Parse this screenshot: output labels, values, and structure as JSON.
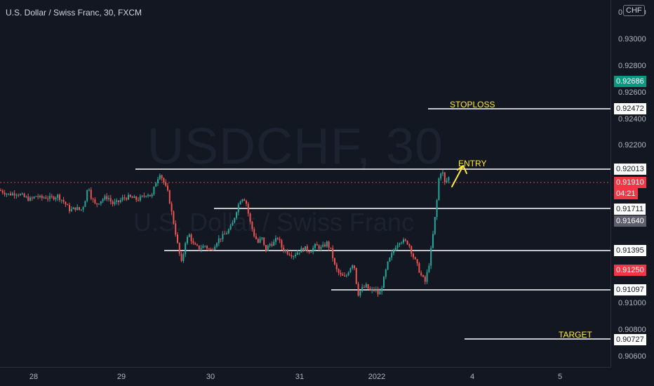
{
  "header": {
    "title": "U.S. Dollar / Swiss Franc, 30, FXCM"
  },
  "watermark": {
    "symbol": "USDCHF, 30",
    "name": "U.S. Dollar / Swiss Franc"
  },
  "price_axis": {
    "currency": "CHF",
    "top_partial": "0.93200",
    "ticks": [
      "0.93000",
      "0.92800",
      "0.92600",
      "0.92400",
      "0.92200",
      "0.91000",
      "0.90800",
      "0.90600"
    ],
    "labels": {
      "current_green": "0.92686",
      "stoploss": "0.92472",
      "entry": "0.92013",
      "last_price": "0.91910",
      "countdown": "04:21",
      "level_91711": "0.91711",
      "grey": "0.91640",
      "level_91395": "0.91395",
      "red": "0.91250",
      "level_91097": "0.91097",
      "target": "0.90727"
    }
  },
  "time_axis": {
    "ticks": [
      "28",
      "29",
      "30",
      "31",
      "2022",
      "4",
      "5"
    ]
  },
  "annotations": {
    "stoploss": "STOPLOSS",
    "entry": "ENTRY",
    "target": "TARGET"
  },
  "colors": {
    "up": "#26a69a",
    "down": "#ef5350",
    "background": "#131722",
    "line": "#ffffff",
    "annotation": "#ffeb3b",
    "last_price_line": "#ef5350"
  },
  "chart_data": {
    "type": "candlestick",
    "anchors": [
      [
        0,
        0.9183
      ],
      [
        12,
        0.918
      ],
      [
        24,
        0.9181
      ],
      [
        34,
        0.9178
      ],
      [
        44,
        0.9176
      ],
      [
        52,
        0.9179
      ],
      [
        58,
        0.9177
      ],
      [
        64,
        0.9178
      ],
      [
        72,
        0.9177
      ],
      [
        82,
        0.9179
      ],
      [
        90,
        0.9175
      ],
      [
        100,
        0.9168
      ],
      [
        108,
        0.917
      ],
      [
        115,
        0.9168
      ],
      [
        120,
        0.9173
      ],
      [
        126,
        0.9187
      ],
      [
        130,
        0.9178
      ],
      [
        136,
        0.9172
      ],
      [
        142,
        0.9175
      ],
      [
        148,
        0.9177
      ],
      [
        154,
        0.9178
      ],
      [
        160,
        0.9173
      ],
      [
        168,
        0.9174
      ],
      [
        175,
        0.9177
      ],
      [
        182,
        0.9178
      ],
      [
        190,
        0.9177
      ],
      [
        196,
        0.9176
      ],
      [
        203,
        0.9178
      ],
      [
        210,
        0.9181
      ],
      [
        216,
        0.9178
      ],
      [
        222,
        0.9189
      ],
      [
        228,
        0.9196
      ],
      [
        234,
        0.9188
      ],
      [
        240,
        0.918
      ],
      [
        244,
        0.9168
      ],
      [
        249,
        0.9155
      ],
      [
        254,
        0.914
      ],
      [
        259,
        0.9128
      ],
      [
        264,
        0.9145
      ],
      [
        270,
        0.915
      ],
      [
        276,
        0.9142
      ],
      [
        284,
        0.914
      ],
      [
        292,
        0.9142
      ],
      [
        300,
        0.9138
      ],
      [
        310,
        0.9146
      ],
      [
        320,
        0.915
      ],
      [
        330,
        0.9156
      ],
      [
        338,
        0.917
      ],
      [
        344,
        0.9178
      ],
      [
        350,
        0.9176
      ],
      [
        356,
        0.916
      ],
      [
        362,
        0.915
      ],
      [
        368,
        0.9144
      ],
      [
        373,
        0.9148
      ],
      [
        378,
        0.9138
      ],
      [
        384,
        0.9143
      ],
      [
        390,
        0.9144
      ],
      [
        396,
        0.9148
      ],
      [
        402,
        0.914
      ],
      [
        410,
        0.9137
      ],
      [
        418,
        0.9135
      ],
      [
        426,
        0.9138
      ],
      [
        434,
        0.914
      ],
      [
        442,
        0.9138
      ],
      [
        450,
        0.9142
      ],
      [
        458,
        0.914
      ],
      [
        466,
        0.9144
      ],
      [
        472,
        0.9138
      ],
      [
        478,
        0.9125
      ],
      [
        485,
        0.912
      ],
      [
        492,
        0.9118
      ],
      [
        498,
        0.9125
      ],
      [
        504,
        0.913
      ],
      [
        510,
        0.9106
      ],
      [
        516,
        0.911
      ],
      [
        522,
        0.9112
      ],
      [
        528,
        0.9108
      ],
      [
        534,
        0.911
      ],
      [
        540,
        0.9105
      ],
      [
        546,
        0.9115
      ],
      [
        552,
        0.9128
      ],
      [
        558,
        0.9135
      ],
      [
        564,
        0.9142
      ],
      [
        570,
        0.9146
      ],
      [
        576,
        0.9145
      ],
      [
        582,
        0.9144
      ],
      [
        588,
        0.9135
      ],
      [
        594,
        0.9128
      ],
      [
        600,
        0.912
      ],
      [
        606,
        0.9115
      ],
      [
        612,
        0.913
      ],
      [
        617,
        0.915
      ],
      [
        622,
        0.9172
      ],
      [
        626,
        0.9195
      ],
      [
        630,
        0.9198
      ],
      [
        634,
        0.9188
      ],
      [
        640,
        0.9193
      ]
    ],
    "levels": [
      {
        "name": "stoploss",
        "price": 0.92472
      },
      {
        "name": "entry",
        "price": 0.92013
      },
      {
        "name": "level",
        "price": 0.91711
      },
      {
        "name": "level",
        "price": 0.91395
      },
      {
        "name": "level",
        "price": 0.91097
      },
      {
        "name": "target",
        "price": 0.90727
      }
    ],
    "last_price": 0.9191,
    "ylim": [
      0.9052,
      0.9324
    ]
  }
}
